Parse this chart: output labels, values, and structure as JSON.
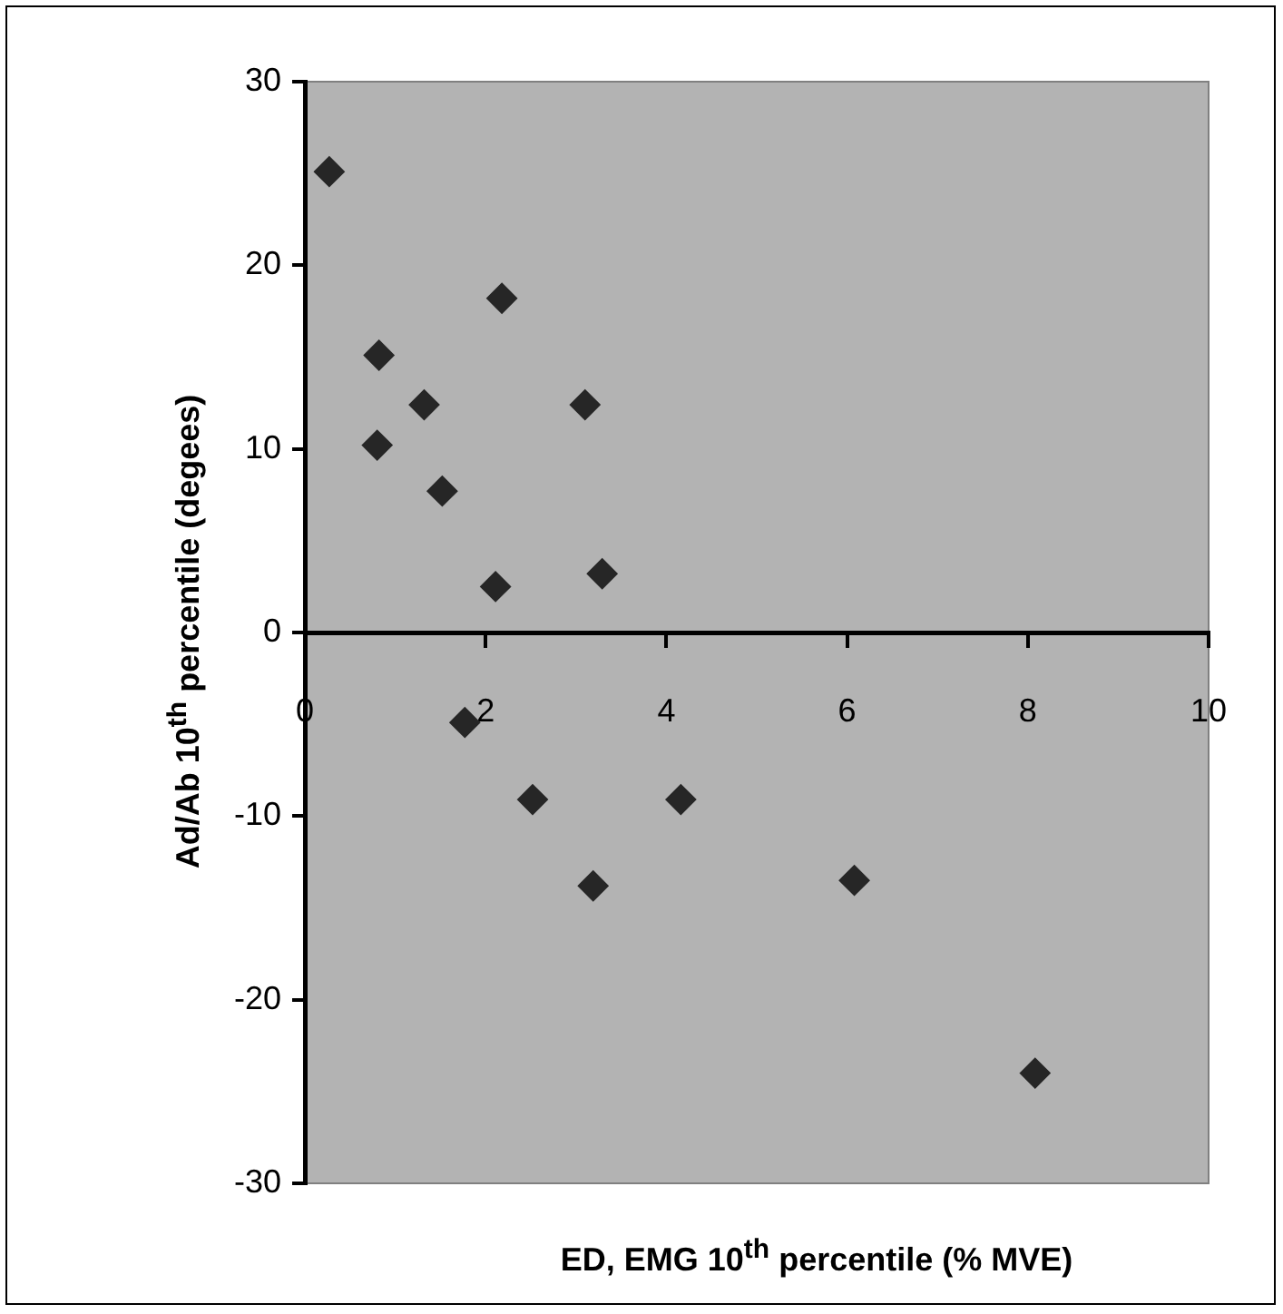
{
  "chart_data": {
    "type": "scatter",
    "xlabel": "ED, EMG 10$^{th}$ percentile (% MVE)",
    "ylabel": "Ad/Ab 10$^{th}$ percentile (degees)",
    "x": [
      0.27,
      2.18,
      0.82,
      1.32,
      3.1,
      0.8,
      1.52,
      2.11,
      3.29,
      1.77,
      2.52,
      4.16,
      3.19,
      6.08,
      8.08
    ],
    "values": [
      25.1,
      18.2,
      15.1,
      12.4,
      12.4,
      10.2,
      7.7,
      2.5,
      3.2,
      -4.9,
      -9.1,
      -9.1,
      -13.8,
      -13.5,
      -24.0
    ],
    "color": "#262626",
    "marker": "diamond",
    "xlim": [
      0,
      10
    ],
    "xticks": [
      0,
      2,
      4,
      6,
      8,
      10
    ],
    "ylim": [
      -30,
      30
    ],
    "yticks": [
      -30,
      -20,
      -10,
      0,
      10,
      20,
      30
    ]
  }
}
